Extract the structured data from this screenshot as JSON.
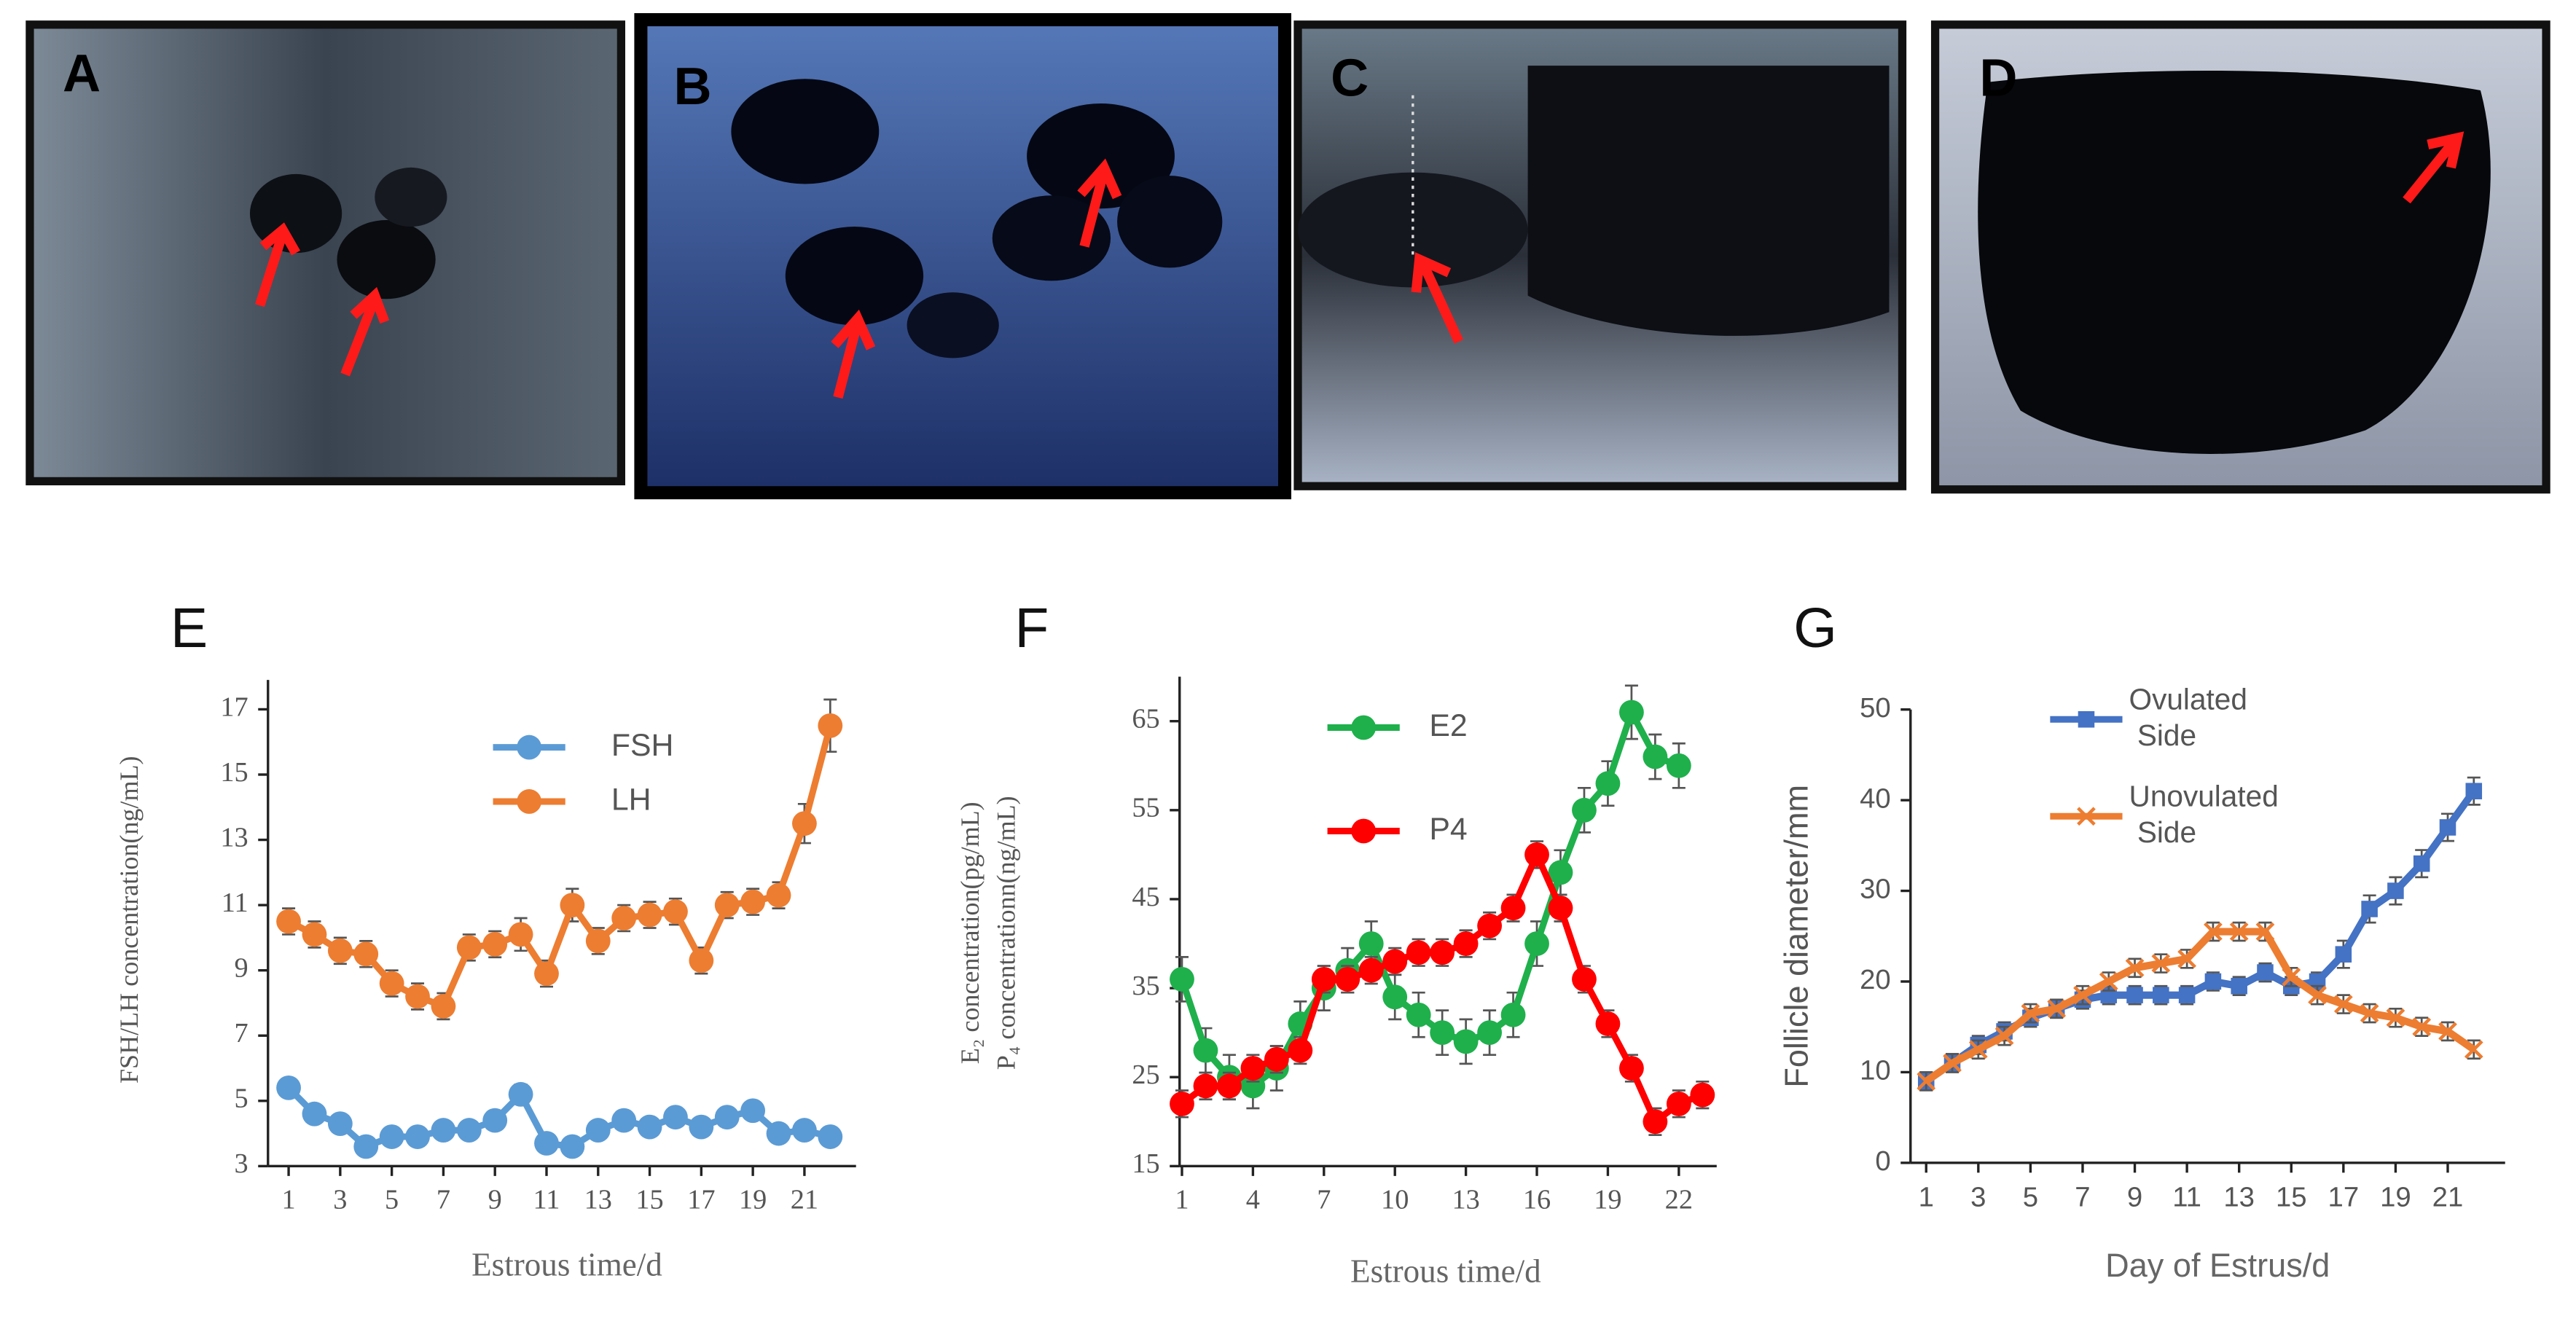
{
  "images": [
    {
      "label": "A"
    },
    {
      "label": "B"
    },
    {
      "label": "C"
    },
    {
      "label": "D"
    }
  ],
  "chart_data": [
    {
      "type": "line",
      "panel": "E",
      "y_label": "FSH/LH concentration(ng/mL)",
      "x_label": "Estrous time/d",
      "x": [
        1,
        2,
        3,
        4,
        5,
        6,
        7,
        8,
        9,
        10,
        11,
        12,
        13,
        14,
        15,
        16,
        17,
        18,
        19,
        20,
        21,
        22
      ],
      "xlim": [
        0.2,
        23
      ],
      "xticks": [
        1,
        3,
        5,
        7,
        9,
        11,
        13,
        15,
        17,
        19,
        21
      ],
      "ylim": [
        3,
        17.9
      ],
      "yticks": [
        3,
        5,
        7,
        9,
        11,
        13,
        15,
        17
      ],
      "legend": "top",
      "series": [
        {
          "name": "FSH",
          "color": "#5b9bd5",
          "marker": "circle",
          "values": [
            5.4,
            4.6,
            4.3,
            3.6,
            3.9,
            3.9,
            4.1,
            4.1,
            4.4,
            5.2,
            3.7,
            3.6,
            4.1,
            4.4,
            4.2,
            4.5,
            4.2,
            4.5,
            4.7,
            4.0,
            4.1,
            3.9
          ],
          "errors": [
            0.2,
            0.2,
            0.2,
            0.2,
            0.2,
            0.2,
            0.2,
            0.2,
            0.2,
            0.3,
            0.2,
            0.2,
            0.2,
            0.2,
            0.2,
            0.2,
            0.2,
            0.2,
            0.2,
            0.2,
            0.2,
            0.2
          ]
        },
        {
          "name": "LH",
          "color": "#ed7d31",
          "marker": "circle",
          "values": [
            10.5,
            10.1,
            9.6,
            9.5,
            8.6,
            8.2,
            7.9,
            9.7,
            9.8,
            10.1,
            8.9,
            11.0,
            9.9,
            10.6,
            10.7,
            10.8,
            9.3,
            11.0,
            11.1,
            11.3,
            13.5,
            16.5
          ],
          "errors": [
            0.4,
            0.4,
            0.4,
            0.4,
            0.4,
            0.4,
            0.4,
            0.4,
            0.4,
            0.5,
            0.4,
            0.5,
            0.4,
            0.4,
            0.4,
            0.4,
            0.4,
            0.4,
            0.4,
            0.4,
            0.6,
            0.8
          ]
        }
      ]
    },
    {
      "type": "line",
      "panel": "F",
      "y_label": "E₂ concentration(pg/mL)",
      "y_label2": "P₄ concentrationn(ng/mL)",
      "x_label": "Estrous time/d",
      "x": [
        1,
        2,
        3,
        4,
        5,
        6,
        7,
        8,
        9,
        10,
        11,
        12,
        13,
        14,
        15,
        16,
        17,
        18,
        19,
        20,
        21,
        22,
        23
      ],
      "xlim": [
        0.9,
        23.6
      ],
      "xticks": [
        1,
        4,
        7,
        10,
        13,
        16,
        19,
        22
      ],
      "ylim": [
        15,
        70
      ],
      "yticks": [
        15,
        25,
        35,
        45,
        55,
        65
      ],
      "legend": "top",
      "series": [
        {
          "name": "E2",
          "color": "#1fb04c",
          "marker": "circle",
          "values": [
            36,
            28,
            25,
            24,
            26,
            31,
            35,
            37,
            40,
            34,
            32,
            30,
            29,
            30,
            32,
            40,
            48,
            55,
            58,
            66,
            61,
            60,
            null
          ],
          "errors": [
            2.5,
            2.5,
            2.5,
            2.5,
            2.5,
            2.5,
            2.5,
            2.5,
            2.5,
            2.5,
            2.5,
            2.5,
            2.5,
            2.5,
            2.5,
            2.5,
            2.5,
            2.5,
            2.5,
            3,
            2.5,
            2.5,
            null
          ]
        },
        {
          "name": "P4",
          "color": "#ff0000",
          "marker": "circle",
          "values": [
            22,
            24,
            24,
            26,
            27,
            28,
            36,
            36,
            37,
            38,
            39,
            39,
            40,
            42,
            44,
            50,
            44,
            36,
            31,
            26,
            20,
            22,
            23
          ],
          "errors": [
            1.5,
            1.5,
            1.5,
            1.5,
            1.5,
            1.5,
            1.5,
            1.5,
            1.5,
            1.5,
            1.5,
            1.5,
            1.5,
            1.5,
            1.5,
            1.5,
            1.5,
            1.5,
            1.5,
            1.5,
            1.5,
            1.5,
            1.5
          ]
        }
      ]
    },
    {
      "type": "line",
      "panel": "G",
      "y_label": "Follicle diameter/mm",
      "x_label": "Day of Estrus/d",
      "x": [
        1,
        2,
        3,
        4,
        5,
        6,
        7,
        8,
        9,
        10,
        11,
        12,
        13,
        14,
        15,
        16,
        17,
        18,
        19,
        20,
        21,
        22
      ],
      "xlim": [
        0.4,
        23.2
      ],
      "xticks": [
        1,
        3,
        5,
        7,
        9,
        11,
        13,
        15,
        17,
        19,
        21
      ],
      "ylim": [
        0,
        50
      ],
      "yticks": [
        0,
        10,
        20,
        30,
        40,
        50
      ],
      "legend": "top",
      "series": [
        {
          "name": "Ovulated Side",
          "color": "#4472c4",
          "marker": "square",
          "values": [
            9,
            11,
            13,
            14.5,
            16,
            17,
            18,
            18.5,
            18.5,
            18.5,
            18.5,
            20,
            19.5,
            21,
            19.5,
            20,
            23,
            28,
            30,
            33,
            37,
            41
          ],
          "errors": [
            1,
            1,
            1,
            1,
            1,
            1,
            1,
            1,
            1,
            1,
            1,
            1,
            1,
            1,
            1,
            1,
            1.5,
            1.5,
            1.5,
            1.5,
            1.5,
            1.5
          ]
        },
        {
          "name": "Unovulated Side",
          "color": "#ed7d31",
          "marker": "x",
          "values": [
            9,
            11,
            12.5,
            14,
            16.5,
            17,
            18.5,
            20,
            21.5,
            22,
            22.5,
            25.5,
            25.5,
            25.5,
            20.5,
            18.5,
            17.5,
            16.5,
            16,
            15,
            14.5,
            12.5
          ],
          "errors": [
            1,
            1,
            1,
            1,
            1,
            1,
            1,
            1,
            1,
            1,
            1,
            1,
            1,
            1,
            1,
            1,
            1,
            1,
            1,
            1,
            1,
            1
          ]
        }
      ]
    }
  ]
}
